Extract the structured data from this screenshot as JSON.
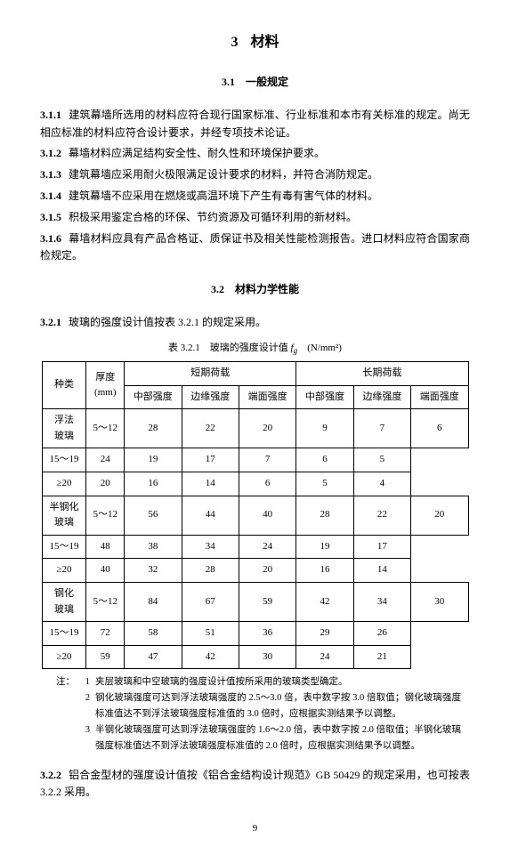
{
  "chapter": {
    "num": "3",
    "title": "材料"
  },
  "section1": {
    "num": "3.1",
    "title": "一般规定"
  },
  "clauses1": [
    {
      "num": "3.1.1",
      "text": "建筑幕墙所选用的材料应符合现行国家标准、行业标准和本市有关标准的规定。尚无相应标准的材料应符合设计要求，并经专项技术论证。"
    },
    {
      "num": "3.1.2",
      "text": "幕墙材料应满足结构安全性、耐久性和环境保护要求。"
    },
    {
      "num": "3.1.3",
      "text": "建筑幕墙应采用耐火极限满足设计要求的材料，并符合消防规定。"
    },
    {
      "num": "3.1.4",
      "text": "建筑幕墙不应采用在燃烧或高温环境下产生有毒有害气体的材料。"
    },
    {
      "num": "3.1.5",
      "text": "积极采用鉴定合格的环保、节约资源及可循环利用的新材料。"
    },
    {
      "num": "3.1.6",
      "text": "幕墙材料应具有产品合格证、质保证书及相关性能检测报告。进口材料应符合国家商检规定。"
    }
  ],
  "section2": {
    "num": "3.2",
    "title": "材料力学性能"
  },
  "clause321": {
    "num": "3.2.1",
    "text": "玻璃的强度设计值按表 3.2.1 的规定采用。"
  },
  "table": {
    "caption_prefix": "表 3.2.1　玻璃的强度设计值",
    "symbol": "f",
    "subscript": "g",
    "unit": "(N/mm²)",
    "head": {
      "kind": "种类",
      "thickness": "厚度\n(mm)",
      "short": "短期荷载",
      "long": "长期荷载",
      "cols": [
        "中部强度",
        "边缘强度",
        "端面强度"
      ]
    },
    "groups": [
      {
        "name": "浮法\n玻璃",
        "rows": [
          {
            "t": "5～12",
            "s": [
              "28",
              "22",
              "20"
            ],
            "l": [
              "9",
              "7",
              "6"
            ]
          },
          {
            "t": "15～19",
            "s": [
              "24",
              "19",
              "17"
            ],
            "l": [
              "7",
              "6",
              "5"
            ]
          },
          {
            "t": "≥20",
            "s": [
              "20",
              "16",
              "14"
            ],
            "l": [
              "6",
              "5",
              "4"
            ]
          }
        ]
      },
      {
        "name": "半钢化\n玻璃",
        "rows": [
          {
            "t": "5～12",
            "s": [
              "56",
              "44",
              "40"
            ],
            "l": [
              "28",
              "22",
              "20"
            ]
          },
          {
            "t": "15～19",
            "s": [
              "48",
              "38",
              "34"
            ],
            "l": [
              "24",
              "19",
              "17"
            ]
          },
          {
            "t": "≥20",
            "s": [
              "40",
              "32",
              "28"
            ],
            "l": [
              "20",
              "16",
              "14"
            ]
          }
        ]
      },
      {
        "name": "钢化\n玻璃",
        "rows": [
          {
            "t": "5～12",
            "s": [
              "84",
              "67",
              "59"
            ],
            "l": [
              "42",
              "34",
              "30"
            ]
          },
          {
            "t": "15～19",
            "s": [
              "72",
              "58",
              "51"
            ],
            "l": [
              "36",
              "29",
              "26"
            ]
          },
          {
            "t": "≥20",
            "s": [
              "59",
              "47",
              "42"
            ],
            "l": [
              "30",
              "24",
              "21"
            ]
          }
        ]
      }
    ]
  },
  "notes": {
    "label": "注：",
    "items": [
      "夹层玻璃和中空玻璃的强度设计值按所采用的玻璃类型确定。",
      "钢化玻璃强度可达到浮法玻璃强度的 2.5～3.0 倍，表中数字按 3.0 倍取值；钢化玻璃强度标准值达不到浮法玻璃强度标准值的 3.0 倍时，应根据实测结果予以调整。",
      "半钢化玻璃强度可达到浮法玻璃强度的 1.6～2.0 倍，表中数字按 2.0 倍取值；半钢化玻璃强度标准值达不到浮法玻璃强度标准值的 2.0 倍时，应根据实测结果予以调整。"
    ]
  },
  "clause322": {
    "num": "3.2.2",
    "text": "铝合金型材的强度设计值按《铝合金结构设计规范》GB 50429 的规定采用，也可按表 3.2.2 采用。"
  },
  "page": "9"
}
